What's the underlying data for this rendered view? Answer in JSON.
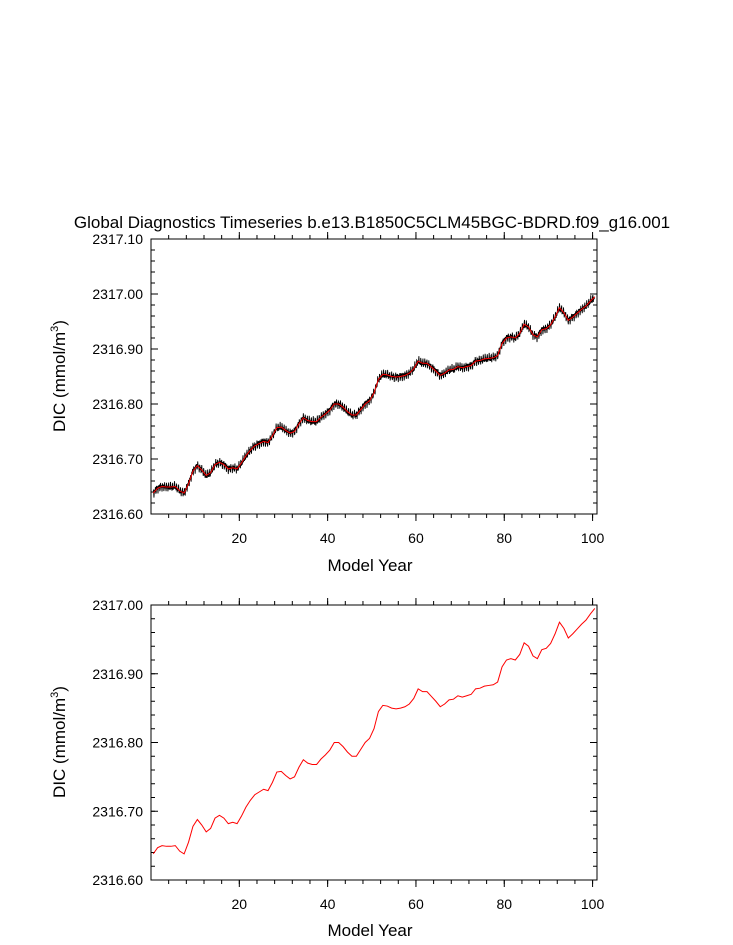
{
  "title": "Global Diagnostics Timeseries b.e13.B1850C5CLM45BGC-BDRD.f09_g16.001",
  "chart_data": [
    {
      "type": "line",
      "name": "monthly-timeseries",
      "title": "Global Diagnostics Timeseries b.e13.B1850C5CLM45BGC-BDRD.f09_g16.001",
      "xlabel": "Model Year",
      "ylabel": "DIC (mmol/m",
      "ylabel_sup": "3",
      "ylabel_close": ")",
      "xlim": [
        0,
        101
      ],
      "ylim": [
        2316.6,
        2317.1
      ],
      "x_ticks": [
        20,
        40,
        60,
        80,
        100
      ],
      "x_tick_labels": [
        "20",
        "40",
        "60",
        "80",
        "100"
      ],
      "y_ticks": [
        2316.6,
        2316.7,
        2316.8,
        2316.9,
        2317.0,
        2317.1
      ],
      "y_tick_labels": [
        "2316.60",
        "2316.70",
        "2316.80",
        "2316.90",
        "2317.00",
        "2317.10"
      ],
      "series": [
        {
          "name": "monthly",
          "color": "#000000",
          "style": "monthly-oscillation"
        },
        {
          "name": "annual-mean",
          "color": "#ff0000"
        }
      ],
      "annual_x": [
        0.5,
        1.5,
        2.5,
        3.5,
        4.5,
        5.5,
        6.5,
        7.5,
        8.5,
        9.5,
        10.5,
        11.5,
        12.5,
        13.5,
        14.5,
        15.5,
        16.5,
        17.5,
        18.5,
        19.5,
        20.5,
        21.5,
        22.5,
        23.5,
        24.5,
        25.5,
        26.5,
        27.5,
        28.5,
        29.5,
        30.5,
        31.5,
        32.5,
        33.5,
        34.5,
        35.5,
        36.5,
        37.5,
        38.5,
        39.5,
        40.5,
        41.5,
        42.5,
        43.5,
        44.5,
        45.5,
        46.5,
        47.5,
        48.5,
        49.5,
        50.5,
        51.5,
        52.5,
        53.5,
        54.5,
        55.5,
        56.5,
        57.5,
        58.5,
        59.5,
        60.5,
        61.5,
        62.5,
        63.5,
        64.5,
        65.5,
        66.5,
        67.5,
        68.5,
        69.5,
        70.5,
        71.5,
        72.5,
        73.5,
        74.5,
        75.5,
        76.5,
        77.5,
        78.5,
        79.5,
        80.5,
        81.5,
        82.5,
        83.5,
        84.5,
        85.5,
        86.5,
        87.5,
        88.5,
        89.5,
        90.5,
        91.5,
        92.5,
        93.5,
        94.5,
        95.5,
        96.5,
        97.5,
        98.5,
        99.5,
        100.5
      ],
      "annual_values": [
        2316.638,
        2316.647,
        2316.65,
        2316.649,
        2316.649,
        2316.65,
        2316.642,
        2316.638,
        2316.655,
        2316.678,
        2316.688,
        2316.68,
        2316.67,
        2316.675,
        2316.69,
        2316.694,
        2316.69,
        2316.682,
        2316.684,
        2316.682,
        2316.693,
        2316.706,
        2316.716,
        2316.724,
        2316.728,
        2316.732,
        2316.73,
        2316.742,
        2316.757,
        2316.758,
        2316.752,
        2316.747,
        2316.75,
        2316.764,
        2316.775,
        2316.77,
        2316.768,
        2316.768,
        2316.776,
        2316.782,
        2316.789,
        2316.8,
        2316.8,
        2316.794,
        2316.786,
        2316.78,
        2316.78,
        2316.79,
        2316.8,
        2316.806,
        2316.82,
        2316.845,
        2316.854,
        2316.853,
        2316.85,
        2316.849,
        2316.85,
        2316.852,
        2316.856,
        2316.864,
        2316.878,
        2316.874,
        2316.874,
        2316.867,
        2316.86,
        2316.852,
        2316.856,
        2316.862,
        2316.863,
        2316.868,
        2316.866,
        2316.868,
        2316.87,
        2316.878,
        2316.879,
        2316.882,
        2316.883,
        2316.884,
        2316.888,
        2316.91,
        2316.92,
        2316.922,
        2316.92,
        2316.928,
        2316.945,
        2316.94,
        2316.926,
        2316.922,
        2316.935,
        2316.937,
        2316.944,
        2316.958,
        2316.975,
        2316.966,
        2316.952,
        2316.958,
        2316.965,
        2316.972,
        2316.978,
        2316.987,
        2316.995
      ]
    },
    {
      "type": "line",
      "name": "annual-timeseries",
      "xlabel": "Model Year",
      "ylabel": "DIC (mmol/m",
      "ylabel_sup": "3",
      "ylabel_close": ")",
      "xlim": [
        0,
        101
      ],
      "ylim": [
        2316.6,
        2317.0
      ],
      "x_ticks": [
        20,
        40,
        60,
        80,
        100
      ],
      "x_tick_labels": [
        "20",
        "40",
        "60",
        "80",
        "100"
      ],
      "y_ticks": [
        2316.6,
        2316.7,
        2316.8,
        2316.9,
        2317.0
      ],
      "y_tick_labels": [
        "2316.60",
        "2316.70",
        "2316.80",
        "2316.90",
        "2317.00"
      ],
      "series": [
        {
          "name": "annual-mean",
          "color": "#ff0000"
        }
      ]
    }
  ]
}
